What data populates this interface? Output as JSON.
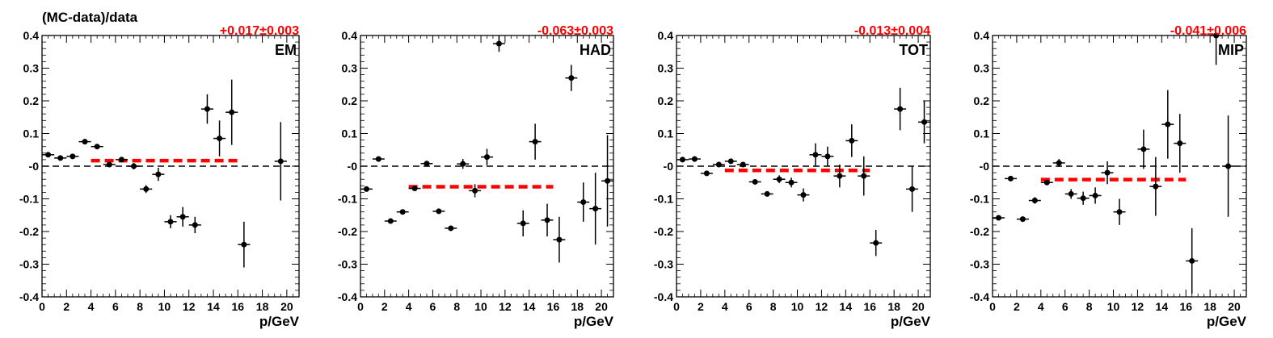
{
  "figure": {
    "ylabel": "(MC-data)/data"
  },
  "style": {
    "data_color": "#000000",
    "fit_color": "#ff0000",
    "zero_line_color": "#000000"
  },
  "chart_data": [
    {
      "type": "scatter",
      "panel_label": "EM",
      "fit_label": "+0.017±0.003",
      "xlabel": "p/GeV",
      "xlim": [
        0,
        21
      ],
      "ylim": [
        -0.4,
        0.4
      ],
      "x_ticks": [
        0,
        2,
        4,
        6,
        8,
        10,
        12,
        14,
        16,
        18,
        20
      ],
      "y_ticks": [
        -0.4,
        -0.3,
        -0.2,
        -0.1,
        0,
        0.1,
        0.2,
        0.3,
        0.4
      ],
      "y_tick_labels": [
        "-0.4",
        "-0.3",
        "-0.2",
        "-0.1",
        "-0",
        "0.1",
        "0.2",
        "0.3",
        "0.4"
      ],
      "fit": {
        "value": 0.017,
        "x_range": [
          4,
          16
        ]
      },
      "points": [
        {
          "x": 0.5,
          "y": 0.035,
          "err": 0.004
        },
        {
          "x": 1.5,
          "y": 0.025,
          "err": 0.004
        },
        {
          "x": 2.5,
          "y": 0.03,
          "err": 0.005
        },
        {
          "x": 3.5,
          "y": 0.075,
          "err": 0.006
        },
        {
          "x": 4.5,
          "y": 0.06,
          "err": 0.006
        },
        {
          "x": 5.5,
          "y": 0.005,
          "err": 0.007
        },
        {
          "x": 6.5,
          "y": 0.02,
          "err": 0.008
        },
        {
          "x": 7.5,
          "y": 0.0,
          "err": 0.01
        },
        {
          "x": 8.5,
          "y": -0.07,
          "err": 0.012
        },
        {
          "x": 9.5,
          "y": -0.025,
          "err": 0.02
        },
        {
          "x": 10.5,
          "y": -0.17,
          "err": 0.02
        },
        {
          "x": 11.5,
          "y": -0.155,
          "err": 0.03
        },
        {
          "x": 12.5,
          "y": -0.18,
          "err": 0.025
        },
        {
          "x": 13.5,
          "y": 0.175,
          "err": 0.045
        },
        {
          "x": 14.5,
          "y": 0.085,
          "err": 0.055
        },
        {
          "x": 15.5,
          "y": 0.165,
          "err": 0.1
        },
        {
          "x": 16.5,
          "y": -0.24,
          "err": 0.07
        },
        {
          "x": 19.5,
          "y": 0.015,
          "err": 0.12
        }
      ]
    },
    {
      "type": "scatter",
      "panel_label": "HAD",
      "fit_label": "-0.063±0.003",
      "xlabel": "p/GeV",
      "xlim": [
        0,
        21
      ],
      "ylim": [
        -0.4,
        0.4
      ],
      "x_ticks": [
        0,
        2,
        4,
        6,
        8,
        10,
        12,
        14,
        16,
        18,
        20
      ],
      "y_ticks": [
        -0.4,
        -0.3,
        -0.2,
        -0.1,
        0,
        0.1,
        0.2,
        0.3,
        0.4
      ],
      "y_tick_labels": [
        "-0.4",
        "-0.3",
        "-0.2",
        "-0.1",
        "-0",
        "0.1",
        "0.2",
        "0.3",
        "0.4"
      ],
      "fit": {
        "value": -0.063,
        "x_range": [
          4,
          16
        ]
      },
      "points": [
        {
          "x": 0.5,
          "y": -0.07,
          "err": 0.004
        },
        {
          "x": 1.5,
          "y": 0.022,
          "err": 0.004
        },
        {
          "x": 2.5,
          "y": -0.168,
          "err": 0.004
        },
        {
          "x": 3.5,
          "y": -0.14,
          "err": 0.005
        },
        {
          "x": 4.5,
          "y": -0.068,
          "err": 0.005
        },
        {
          "x": 5.5,
          "y": 0.008,
          "err": 0.006
        },
        {
          "x": 6.5,
          "y": -0.138,
          "err": 0.006
        },
        {
          "x": 7.5,
          "y": -0.19,
          "err": 0.008
        },
        {
          "x": 8.5,
          "y": 0.007,
          "err": 0.015
        },
        {
          "x": 9.5,
          "y": -0.075,
          "err": 0.02
        },
        {
          "x": 10.5,
          "y": 0.028,
          "err": 0.025
        },
        {
          "x": 11.5,
          "y": 0.375,
          "err": 0.025
        },
        {
          "x": 13.5,
          "y": -0.175,
          "err": 0.04
        },
        {
          "x": 14.5,
          "y": 0.075,
          "err": 0.055
        },
        {
          "x": 15.5,
          "y": -0.165,
          "err": 0.05
        },
        {
          "x": 16.5,
          "y": -0.225,
          "err": 0.07
        },
        {
          "x": 17.5,
          "y": 0.27,
          "err": 0.04
        },
        {
          "x": 18.5,
          "y": -0.11,
          "err": 0.06
        },
        {
          "x": 19.5,
          "y": -0.13,
          "err": 0.11
        },
        {
          "x": 20.5,
          "y": -0.045,
          "err": 0.14
        }
      ]
    },
    {
      "type": "scatter",
      "panel_label": "TOT",
      "fit_label": "-0.013±0.004",
      "xlabel": "p/GeV",
      "xlim": [
        0,
        21
      ],
      "ylim": [
        -0.4,
        0.4
      ],
      "x_ticks": [
        0,
        2,
        4,
        6,
        8,
        10,
        12,
        14,
        16,
        18,
        20
      ],
      "y_ticks": [
        -0.4,
        -0.3,
        -0.2,
        -0.1,
        0,
        0.1,
        0.2,
        0.3,
        0.4
      ],
      "y_tick_labels": [
        "-0.4",
        "-0.3",
        "-0.2",
        "-0.1",
        "-0",
        "0.1",
        "0.2",
        "0.3",
        "0.4"
      ],
      "fit": {
        "value": -0.013,
        "x_range": [
          4,
          16
        ]
      },
      "points": [
        {
          "x": 0.5,
          "y": 0.02,
          "err": 0.004
        },
        {
          "x": 1.5,
          "y": 0.022,
          "err": 0.004
        },
        {
          "x": 2.5,
          "y": -0.022,
          "err": 0.004
        },
        {
          "x": 3.5,
          "y": 0.005,
          "err": 0.005
        },
        {
          "x": 4.5,
          "y": 0.015,
          "err": 0.005
        },
        {
          "x": 5.5,
          "y": 0.005,
          "err": 0.005
        },
        {
          "x": 6.5,
          "y": -0.048,
          "err": 0.006
        },
        {
          "x": 7.5,
          "y": -0.085,
          "err": 0.008
        },
        {
          "x": 8.5,
          "y": -0.04,
          "err": 0.012
        },
        {
          "x": 9.5,
          "y": -0.05,
          "err": 0.015
        },
        {
          "x": 10.5,
          "y": -0.088,
          "err": 0.02
        },
        {
          "x": 11.5,
          "y": 0.035,
          "err": 0.035
        },
        {
          "x": 12.5,
          "y": 0.03,
          "err": 0.03
        },
        {
          "x": 13.5,
          "y": -0.03,
          "err": 0.035
        },
        {
          "x": 14.5,
          "y": 0.078,
          "err": 0.05
        },
        {
          "x": 15.5,
          "y": -0.03,
          "err": 0.06
        },
        {
          "x": 16.5,
          "y": -0.235,
          "err": 0.04
        },
        {
          "x": 18.5,
          "y": 0.175,
          "err": 0.065
        },
        {
          "x": 19.5,
          "y": -0.07,
          "err": 0.07
        },
        {
          "x": 20.5,
          "y": 0.135,
          "err": 0.065
        }
      ]
    },
    {
      "type": "scatter",
      "panel_label": "MIP",
      "fit_label": "-0.041±0.006",
      "xlabel": "p/GeV",
      "xlim": [
        0,
        21
      ],
      "ylim": [
        -0.4,
        0.4
      ],
      "x_ticks": [
        0,
        2,
        4,
        6,
        8,
        10,
        12,
        14,
        16,
        18,
        20
      ],
      "y_ticks": [
        -0.4,
        -0.3,
        -0.2,
        -0.1,
        0,
        0.1,
        0.2,
        0.3,
        0.4
      ],
      "y_tick_labels": [
        "-0.4",
        "-0.3",
        "-0.2",
        "-0.1",
        "-0",
        "0.1",
        "0.2",
        "0.3",
        "0.4"
      ],
      "fit": {
        "value": -0.041,
        "x_range": [
          4,
          16
        ]
      },
      "points": [
        {
          "x": 0.5,
          "y": -0.158,
          "err": 0.004
        },
        {
          "x": 1.5,
          "y": -0.038,
          "err": 0.004
        },
        {
          "x": 2.5,
          "y": -0.162,
          "err": 0.004
        },
        {
          "x": 3.5,
          "y": -0.105,
          "err": 0.01
        },
        {
          "x": 4.5,
          "y": -0.05,
          "err": 0.008
        },
        {
          "x": 5.5,
          "y": 0.01,
          "err": 0.012
        },
        {
          "x": 6.5,
          "y": -0.085,
          "err": 0.015
        },
        {
          "x": 7.5,
          "y": -0.098,
          "err": 0.02
        },
        {
          "x": 8.5,
          "y": -0.09,
          "err": 0.025
        },
        {
          "x": 9.5,
          "y": -0.02,
          "err": 0.035
        },
        {
          "x": 10.5,
          "y": -0.14,
          "err": 0.04
        },
        {
          "x": 12.5,
          "y": 0.052,
          "err": 0.06
        },
        {
          "x": 13.5,
          "y": -0.062,
          "err": 0.09
        },
        {
          "x": 14.5,
          "y": 0.128,
          "err": 0.105
        },
        {
          "x": 15.5,
          "y": 0.07,
          "err": 0.09
        },
        {
          "x": 16.5,
          "y": -0.29,
          "err": 0.1
        },
        {
          "x": 18.5,
          "y": 0.4,
          "err": 0.09
        },
        {
          "x": 19.5,
          "y": 0.0,
          "err": 0.155
        }
      ]
    }
  ]
}
